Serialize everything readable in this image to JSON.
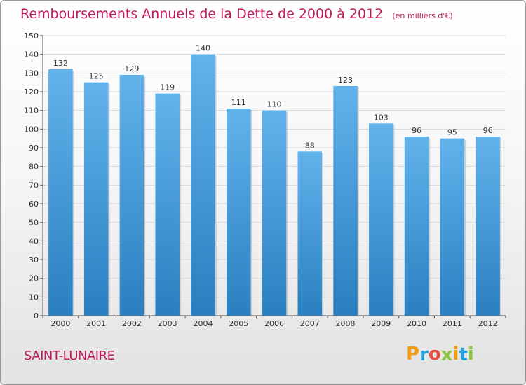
{
  "chart_data": {
    "type": "bar",
    "title": "Remboursements Annuels de la Dette de 2000 à 2012",
    "subtitle": "(en milliers d'€)",
    "categories": [
      "2000",
      "2001",
      "2002",
      "2003",
      "2004",
      "2005",
      "2006",
      "2007",
      "2008",
      "2009",
      "2010",
      "2011",
      "2012"
    ],
    "values": [
      132,
      125,
      129,
      119,
      140,
      111,
      110,
      88,
      123,
      103,
      96,
      95,
      96
    ],
    "ylim": [
      0,
      150
    ],
    "yticks": [
      0,
      10,
      20,
      30,
      40,
      50,
      60,
      70,
      80,
      90,
      100,
      110,
      120,
      130,
      140,
      150
    ],
    "grid": true,
    "data_labels": true,
    "bar_color": "#3d8fd0"
  },
  "footer": {
    "commune": "SAINT-LUNAIRE",
    "logo_letters": [
      "P",
      "r",
      "o",
      "x",
      "i",
      "t",
      "i"
    ],
    "logo_colors": [
      "#f39c12",
      "#27a0d8",
      "#e74c3c",
      "#8dc63f",
      "#f39c12",
      "#27a0d8",
      "#8dc63f"
    ]
  },
  "colors": {
    "accent": "#c2185b"
  }
}
